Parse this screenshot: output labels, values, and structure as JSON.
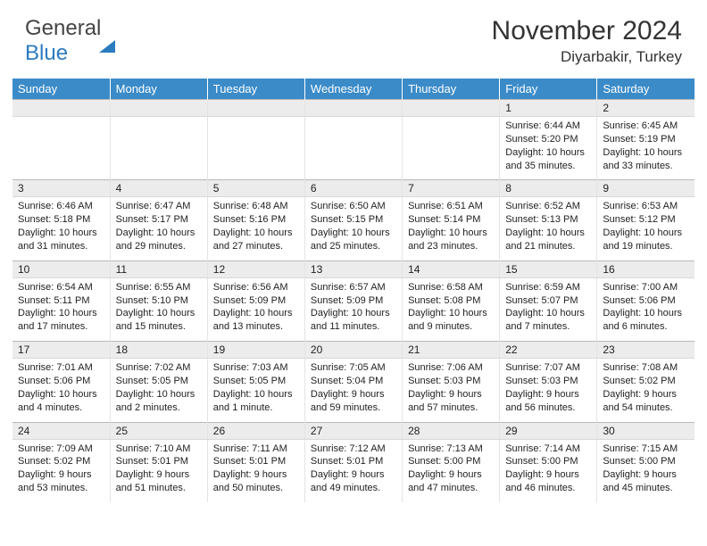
{
  "logo": {
    "part1": "General",
    "part2": "Blue"
  },
  "title": "November 2024",
  "subtitle": "Diyarbakir, Turkey",
  "colors": {
    "header_bg": "#3b8bc9",
    "header_text": "#ffffff",
    "daynum_bg": "#ececec",
    "cell_bg": "#ffffff",
    "border": "#c8c8c8",
    "text": "#222222",
    "logo_gray": "#444444",
    "logo_blue": "#2b7bbf"
  },
  "day_headers": [
    "Sunday",
    "Monday",
    "Tuesday",
    "Wednesday",
    "Thursday",
    "Friday",
    "Saturday"
  ],
  "weeks": [
    [
      null,
      null,
      null,
      null,
      null,
      {
        "n": "1",
        "sunrise": "6:44 AM",
        "sunset": "5:20 PM",
        "daylight": "10 hours and 35 minutes."
      },
      {
        "n": "2",
        "sunrise": "6:45 AM",
        "sunset": "5:19 PM",
        "daylight": "10 hours and 33 minutes."
      }
    ],
    [
      {
        "n": "3",
        "sunrise": "6:46 AM",
        "sunset": "5:18 PM",
        "daylight": "10 hours and 31 minutes."
      },
      {
        "n": "4",
        "sunrise": "6:47 AM",
        "sunset": "5:17 PM",
        "daylight": "10 hours and 29 minutes."
      },
      {
        "n": "5",
        "sunrise": "6:48 AM",
        "sunset": "5:16 PM",
        "daylight": "10 hours and 27 minutes."
      },
      {
        "n": "6",
        "sunrise": "6:50 AM",
        "sunset": "5:15 PM",
        "daylight": "10 hours and 25 minutes."
      },
      {
        "n": "7",
        "sunrise": "6:51 AM",
        "sunset": "5:14 PM",
        "daylight": "10 hours and 23 minutes."
      },
      {
        "n": "8",
        "sunrise": "6:52 AM",
        "sunset": "5:13 PM",
        "daylight": "10 hours and 21 minutes."
      },
      {
        "n": "9",
        "sunrise": "6:53 AM",
        "sunset": "5:12 PM",
        "daylight": "10 hours and 19 minutes."
      }
    ],
    [
      {
        "n": "10",
        "sunrise": "6:54 AM",
        "sunset": "5:11 PM",
        "daylight": "10 hours and 17 minutes."
      },
      {
        "n": "11",
        "sunrise": "6:55 AM",
        "sunset": "5:10 PM",
        "daylight": "10 hours and 15 minutes."
      },
      {
        "n": "12",
        "sunrise": "6:56 AM",
        "sunset": "5:09 PM",
        "daylight": "10 hours and 13 minutes."
      },
      {
        "n": "13",
        "sunrise": "6:57 AM",
        "sunset": "5:09 PM",
        "daylight": "10 hours and 11 minutes."
      },
      {
        "n": "14",
        "sunrise": "6:58 AM",
        "sunset": "5:08 PM",
        "daylight": "10 hours and 9 minutes."
      },
      {
        "n": "15",
        "sunrise": "6:59 AM",
        "sunset": "5:07 PM",
        "daylight": "10 hours and 7 minutes."
      },
      {
        "n": "16",
        "sunrise": "7:00 AM",
        "sunset": "5:06 PM",
        "daylight": "10 hours and 6 minutes."
      }
    ],
    [
      {
        "n": "17",
        "sunrise": "7:01 AM",
        "sunset": "5:06 PM",
        "daylight": "10 hours and 4 minutes."
      },
      {
        "n": "18",
        "sunrise": "7:02 AM",
        "sunset": "5:05 PM",
        "daylight": "10 hours and 2 minutes."
      },
      {
        "n": "19",
        "sunrise": "7:03 AM",
        "sunset": "5:05 PM",
        "daylight": "10 hours and 1 minute."
      },
      {
        "n": "20",
        "sunrise": "7:05 AM",
        "sunset": "5:04 PM",
        "daylight": "9 hours and 59 minutes."
      },
      {
        "n": "21",
        "sunrise": "7:06 AM",
        "sunset": "5:03 PM",
        "daylight": "9 hours and 57 minutes."
      },
      {
        "n": "22",
        "sunrise": "7:07 AM",
        "sunset": "5:03 PM",
        "daylight": "9 hours and 56 minutes."
      },
      {
        "n": "23",
        "sunrise": "7:08 AM",
        "sunset": "5:02 PM",
        "daylight": "9 hours and 54 minutes."
      }
    ],
    [
      {
        "n": "24",
        "sunrise": "7:09 AM",
        "sunset": "5:02 PM",
        "daylight": "9 hours and 53 minutes."
      },
      {
        "n": "25",
        "sunrise": "7:10 AM",
        "sunset": "5:01 PM",
        "daylight": "9 hours and 51 minutes."
      },
      {
        "n": "26",
        "sunrise": "7:11 AM",
        "sunset": "5:01 PM",
        "daylight": "9 hours and 50 minutes."
      },
      {
        "n": "27",
        "sunrise": "7:12 AM",
        "sunset": "5:01 PM",
        "daylight": "9 hours and 49 minutes."
      },
      {
        "n": "28",
        "sunrise": "7:13 AM",
        "sunset": "5:00 PM",
        "daylight": "9 hours and 47 minutes."
      },
      {
        "n": "29",
        "sunrise": "7:14 AM",
        "sunset": "5:00 PM",
        "daylight": "9 hours and 46 minutes."
      },
      {
        "n": "30",
        "sunrise": "7:15 AM",
        "sunset": "5:00 PM",
        "daylight": "9 hours and 45 minutes."
      }
    ]
  ],
  "labels": {
    "sunrise": "Sunrise: ",
    "sunset": "Sunset: ",
    "daylight": "Daylight: "
  }
}
